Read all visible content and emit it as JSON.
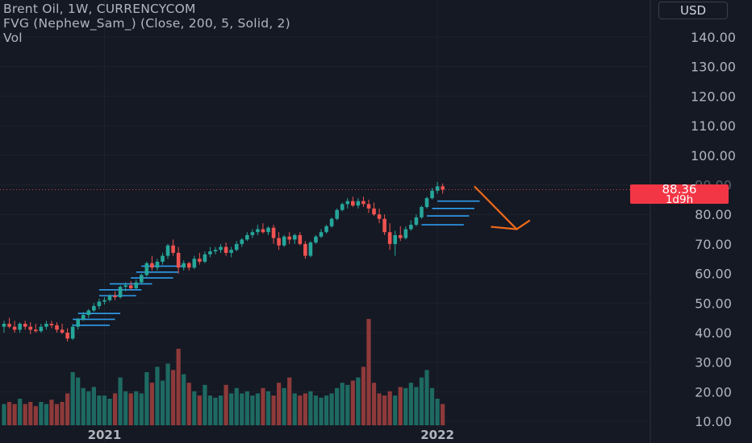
{
  "legend": {
    "line1": "Brent Oil, 1W, CURRENCYCOM",
    "line2": "FVG (Nephew_Sam_) (Close, 200, 5, Solid, 2)",
    "line3": "Vol"
  },
  "currency_button": "USD",
  "last_price": {
    "value": "88.36",
    "countdown": "1d9h",
    "ghost_label": "90.00"
  },
  "colors": {
    "background": "#151924",
    "up": "#26a69a",
    "down": "#ef5350",
    "vol_up": "#1e6a62",
    "vol_down": "#8e3a3a",
    "fvg": "#2f9ded",
    "arrow": "#f06a1b",
    "price_tag": "#f23645",
    "axis_text": "#b2b5be"
  },
  "chart_data": {
    "type": "candlestick",
    "title": "Brent Oil, 1W, CURRENCYCOM",
    "y_axis": {
      "ticks": [
        140,
        130,
        120,
        110,
        100,
        90,
        80,
        70,
        60,
        50,
        40,
        30,
        20,
        10
      ],
      "tick_labels": [
        "140.00",
        "130.00",
        "120.00",
        "110.00",
        "100.00",
        "90.00",
        "80.00",
        "70.00",
        "60.00",
        "50.00",
        "40.00",
        "30.00",
        "20.00",
        "10.00"
      ],
      "range": [
        10,
        150
      ],
      "position": "right"
    },
    "x_axis": {
      "tick_labels": [
        "2021",
        "2022"
      ],
      "tick_positions_candle_index": [
        19,
        82
      ]
    },
    "candles": [
      [
        42,
        44,
        40,
        43
      ],
      [
        43,
        45,
        41.5,
        42
      ],
      [
        42,
        44,
        40,
        41
      ],
      [
        41,
        43.5,
        40,
        43
      ],
      [
        43,
        44,
        41,
        42
      ],
      [
        42,
        43.5,
        39.5,
        41
      ],
      [
        41,
        43,
        40,
        40.5
      ],
      [
        40.5,
        43,
        40,
        42
      ],
      [
        42,
        44,
        41,
        43
      ],
      [
        43,
        44,
        41.5,
        42.5
      ],
      [
        42.5,
        43.5,
        40,
        41
      ],
      [
        41,
        43,
        39.5,
        40
      ],
      [
        40,
        41.5,
        37,
        38
      ],
      [
        38,
        43,
        37.5,
        42
      ],
      [
        42,
        45,
        41,
        44.5
      ],
      [
        44.5,
        47,
        44,
        46
      ],
      [
        46,
        48,
        45,
        47.5
      ],
      [
        47.5,
        50,
        47,
        49
      ],
      [
        49,
        51.5,
        48,
        50.5
      ],
      [
        50.5,
        52,
        49.5,
        51
      ],
      [
        51,
        53,
        50.5,
        52.5
      ],
      [
        52.5,
        54,
        51,
        52
      ],
      [
        52,
        56,
        51.5,
        55.5
      ],
      [
        55.5,
        57,
        54,
        56
      ],
      [
        56,
        57.5,
        54.5,
        55
      ],
      [
        55,
        58,
        54.5,
        57
      ],
      [
        57,
        60,
        56.5,
        59.5
      ],
      [
        59.5,
        64,
        59,
        63.5
      ],
      [
        63.5,
        66,
        61,
        62
      ],
      [
        62,
        65,
        61,
        64
      ],
      [
        64,
        67,
        63,
        66
      ],
      [
        66,
        70,
        65,
        69.5
      ],
      [
        69.5,
        71.5,
        66,
        67
      ],
      [
        67,
        69,
        60,
        62
      ],
      [
        62,
        64.5,
        61,
        63.5
      ],
      [
        63.5,
        64,
        61,
        62
      ],
      [
        62,
        66,
        61.5,
        65
      ],
      [
        65,
        67,
        63,
        64
      ],
      [
        64,
        67.5,
        63.5,
        66.5
      ],
      [
        66.5,
        69,
        65.5,
        67.5
      ],
      [
        67.5,
        69,
        66.5,
        68
      ],
      [
        68,
        70,
        67,
        69
      ],
      [
        69,
        70.5,
        66,
        67
      ],
      [
        67,
        69,
        65.5,
        68
      ],
      [
        68,
        71,
        67.5,
        70
      ],
      [
        70,
        72,
        69,
        71.5
      ],
      [
        71.5,
        74,
        71,
        73
      ],
      [
        73,
        75,
        72,
        74
      ],
      [
        74,
        76.5,
        73,
        75
      ],
      [
        75,
        77,
        73.5,
        74
      ],
      [
        74,
        76,
        73,
        75.5
      ],
      [
        75.5,
        76.5,
        70,
        72
      ],
      [
        72,
        74,
        68,
        69.5
      ],
      [
        69.5,
        73,
        69,
        72.5
      ],
      [
        72.5,
        74,
        70,
        71.5
      ],
      [
        71.5,
        73.5,
        70,
        73
      ],
      [
        73,
        74,
        69.5,
        70
      ],
      [
        70,
        71,
        65,
        66
      ],
      [
        66,
        71,
        65.5,
        70.5
      ],
      [
        70.5,
        73,
        70,
        72.5
      ],
      [
        72.5,
        75,
        72,
        74
      ],
      [
        74,
        76.5,
        73.5,
        76
      ],
      [
        76,
        79,
        75.5,
        78.5
      ],
      [
        78.5,
        82,
        78,
        81.5
      ],
      [
        81.5,
        84,
        81,
        83.5
      ],
      [
        83.5,
        85.5,
        82,
        84.5
      ],
      [
        84.5,
        86,
        82.5,
        83
      ],
      [
        83,
        85.5,
        82,
        84.5
      ],
      [
        84.5,
        86,
        82.5,
        83.5
      ],
      [
        83.5,
        85,
        80.5,
        82
      ],
      [
        82,
        84,
        79.5,
        80
      ],
      [
        80,
        82,
        77,
        78.5
      ],
      [
        78.5,
        80,
        73,
        74
      ],
      [
        74,
        77,
        68,
        70
      ],
      [
        70,
        74.5,
        66,
        73
      ],
      [
        73,
        76,
        71,
        72
      ],
      [
        72,
        76,
        71.5,
        75
      ],
      [
        75,
        78,
        74.5,
        76.5
      ],
      [
        76.5,
        80,
        76,
        79
      ],
      [
        79,
        83,
        78.5,
        82.5
      ],
      [
        82.5,
        86,
        82,
        85.5
      ],
      [
        85.5,
        89,
        85,
        88
      ],
      [
        88,
        91,
        87,
        89.5
      ],
      [
        89.5,
        90.5,
        87,
        88.36
      ]
    ],
    "volume_relative": [
      0.2,
      0.22,
      0.2,
      0.25,
      0.2,
      0.22,
      0.18,
      0.22,
      0.2,
      0.24,
      0.2,
      0.22,
      0.3,
      0.5,
      0.45,
      0.35,
      0.32,
      0.36,
      0.28,
      0.28,
      0.25,
      0.3,
      0.45,
      0.32,
      0.3,
      0.32,
      0.3,
      0.5,
      0.4,
      0.55,
      0.42,
      0.58,
      0.52,
      0.72,
      0.48,
      0.4,
      0.32,
      0.28,
      0.38,
      0.28,
      0.26,
      0.28,
      0.38,
      0.3,
      0.35,
      0.3,
      0.32,
      0.28,
      0.3,
      0.35,
      0.32,
      0.28,
      0.4,
      0.35,
      0.45,
      0.3,
      0.28,
      0.3,
      0.32,
      0.28,
      0.26,
      0.28,
      0.3,
      0.35,
      0.4,
      0.38,
      0.42,
      0.45,
      0.55,
      1.0,
      0.4,
      0.3,
      0.28,
      0.32,
      0.28,
      0.36,
      0.35,
      0.4,
      0.36,
      0.45,
      0.52,
      0.35,
      0.25,
      0.2
    ],
    "fvg_levels": [
      {
        "from": 13,
        "to": 20,
        "price": 42.5
      },
      {
        "from": 13,
        "to": 21,
        "price": 44.5
      },
      {
        "from": 14,
        "to": 22,
        "price": 46.5
      },
      {
        "from": 18,
        "to": 25,
        "price": 52.5
      },
      {
        "from": 18,
        "to": 26,
        "price": 54.5
      },
      {
        "from": 20,
        "to": 28,
        "price": 56.5
      },
      {
        "from": 24,
        "to": 32,
        "price": 58.5
      },
      {
        "from": 25,
        "to": 33,
        "price": 60.5
      },
      {
        "from": 26,
        "to": 34,
        "price": 62.5
      },
      {
        "from": 79,
        "to": 87,
        "price": 76.5
      },
      {
        "from": 80,
        "to": 88,
        "price": 79.5
      },
      {
        "from": 81,
        "to": 89,
        "price": 82.0
      },
      {
        "from": 82,
        "to": 90,
        "price": 84.5
      }
    ],
    "drawing": {
      "type": "arrow",
      "points": [
        [
          89,
          89.5
        ],
        [
          97,
          75
        ],
        [
          99.5,
          78
        ]
      ]
    }
  }
}
